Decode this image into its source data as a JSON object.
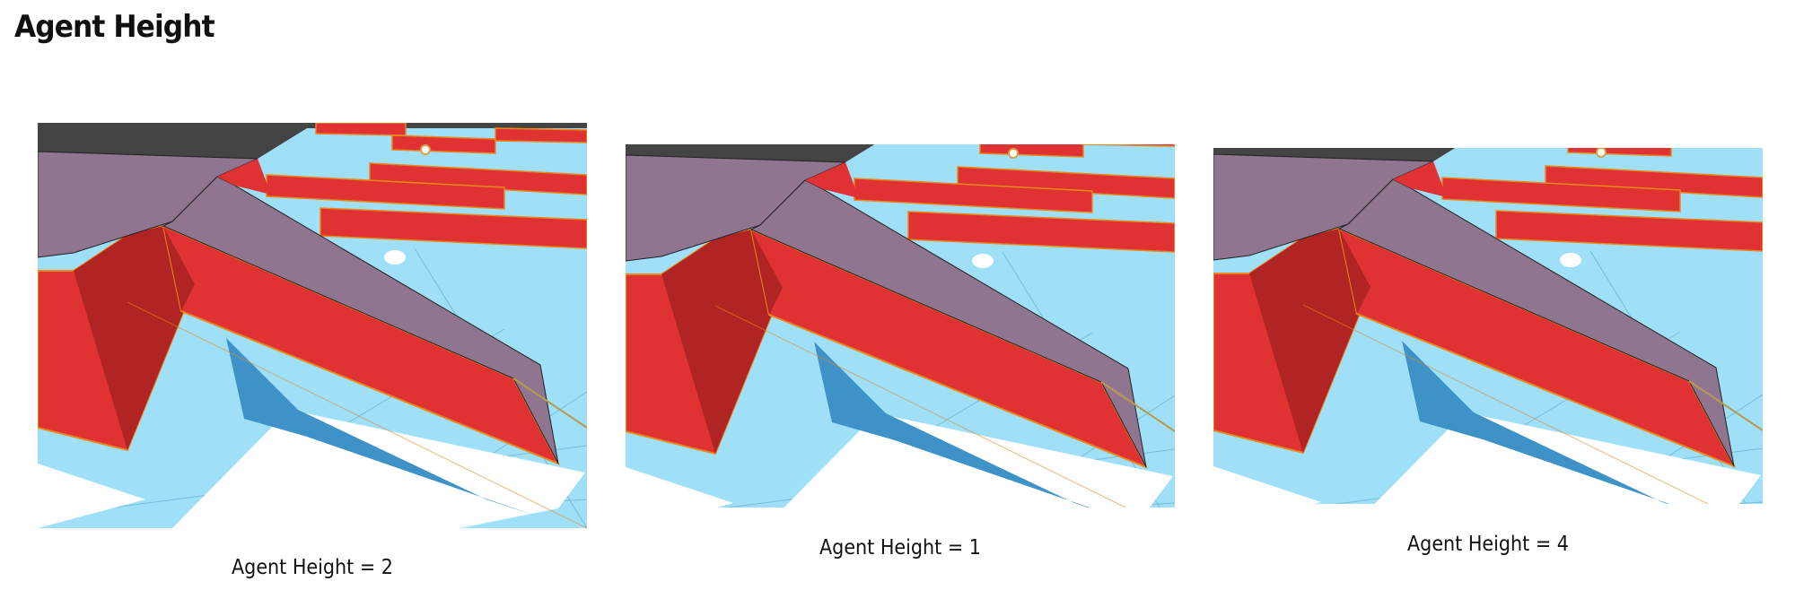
{
  "title": "Agent Height",
  "figures": [
    {
      "caption": "Agent Height = 2"
    },
    {
      "caption": "Agent Height = 1"
    },
    {
      "caption": "Agent Height = 4"
    }
  ],
  "colors": {
    "sky": "#9fe0f8",
    "ground": "#444444",
    "red": "#e03232",
    "dark_red": "#b02424",
    "navmesh_purple": "#8f7590",
    "shadow": "#3e92c8",
    "line": "#e8871c"
  }
}
